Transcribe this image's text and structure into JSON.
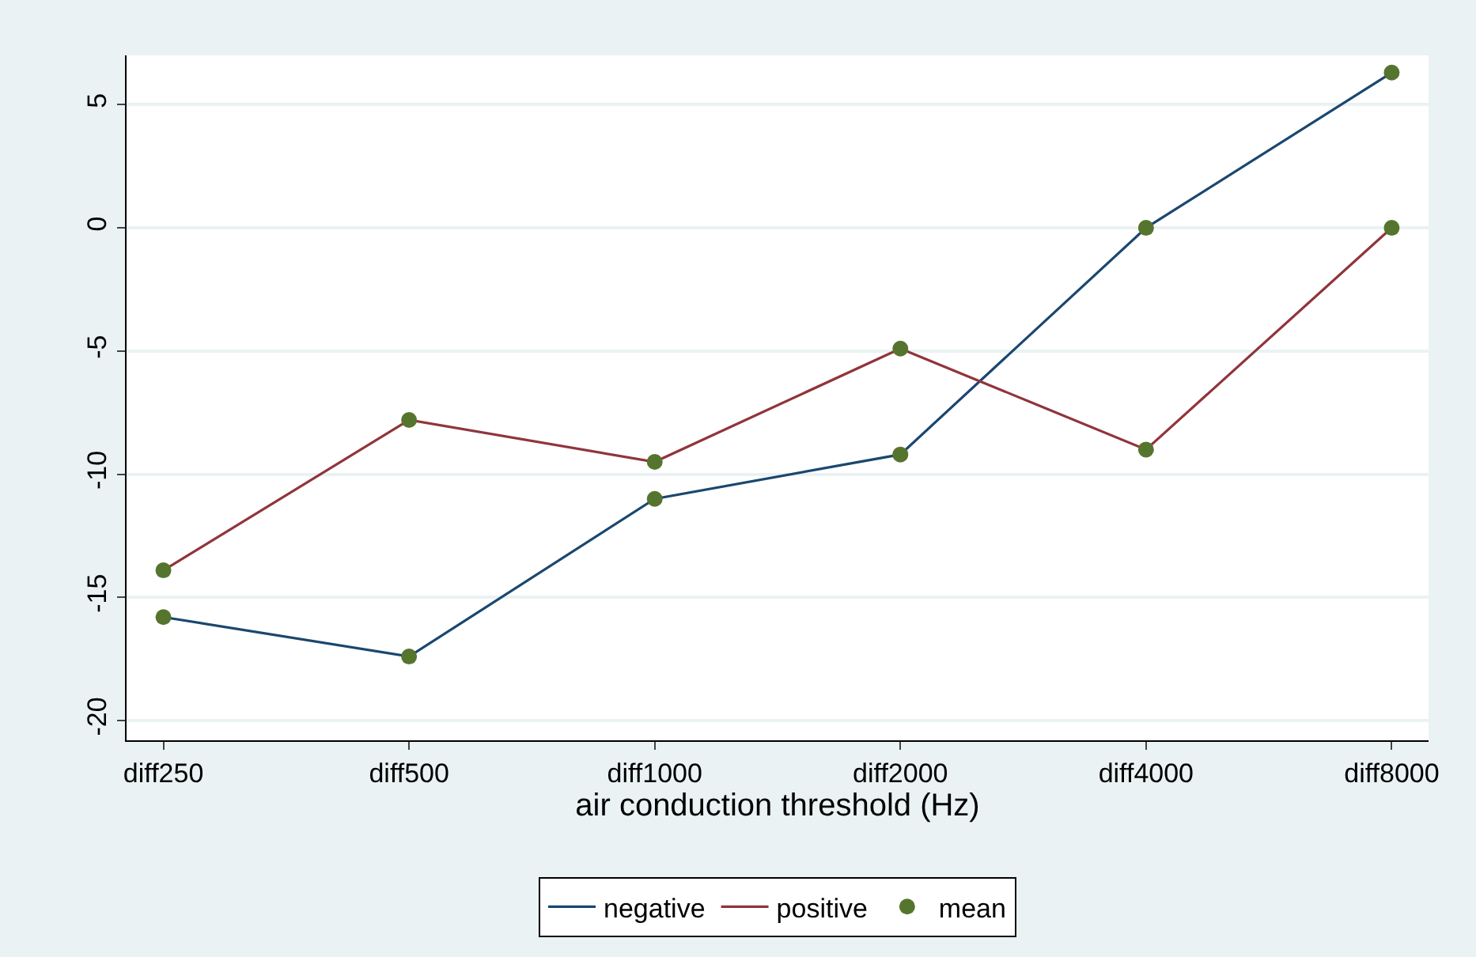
{
  "chart_data": {
    "type": "line",
    "xlabel": "air conduction threshold (Hz)",
    "categories": [
      "diff250",
      "diff500",
      "diff1000",
      "diff2000",
      "diff4000",
      "diff8000"
    ],
    "series": [
      {
        "name": "negative",
        "color": "#1a476f",
        "values": [
          -15.8,
          -17.4,
          -11.0,
          -9.2,
          0,
          6.3
        ]
      },
      {
        "name": "positive",
        "color": "#90353b",
        "values": [
          -13.9,
          -7.8,
          -9.5,
          -4.9,
          -9.0,
          0
        ]
      },
      {
        "name": "mean",
        "type": "scatter",
        "marker": "circle",
        "color": "#55752f",
        "x": [
          "diff250",
          "diff500",
          "diff1000",
          "diff2000",
          "diff4000",
          "diff8000",
          "diff250",
          "diff500",
          "diff1000",
          "diff2000",
          "diff4000",
          "diff8000"
        ],
        "values": [
          -15.8,
          -17.4,
          -11.0,
          -9.2,
          0,
          6.3,
          -13.9,
          -7.8,
          -9.5,
          -4.9,
          -9.0,
          0
        ]
      }
    ],
    "ylim": [
      -20.8,
      7.0
    ],
    "yticks": [
      -20,
      -15,
      -10,
      -5,
      0,
      5
    ],
    "grid": "y",
    "legend": "bottom",
    "line_style": "solid"
  }
}
